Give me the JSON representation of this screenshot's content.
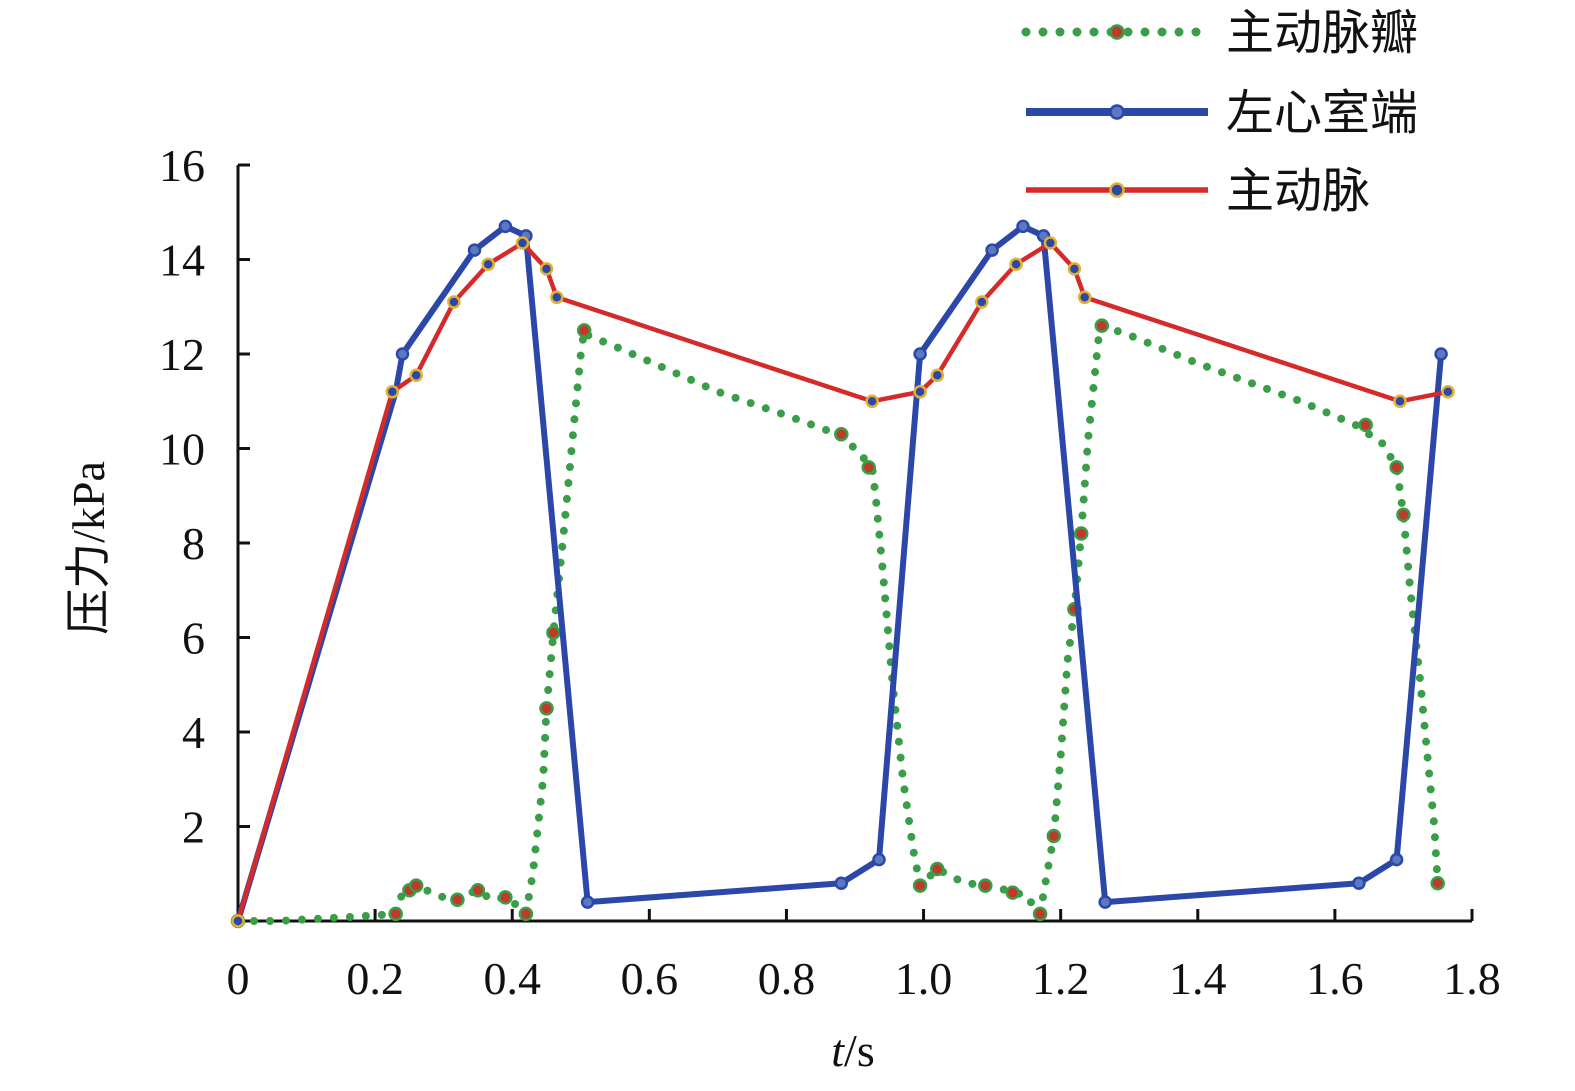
{
  "chart_data": {
    "type": "line",
    "xlabel_italic": "t",
    "xlabel_unit": "/s",
    "ylabel": "压力/kPa",
    "xlim": [
      0,
      1.8
    ],
    "ylim": [
      0,
      16
    ],
    "x_ticks": [
      "0",
      "0.2",
      "0.4",
      "0.6",
      "0.8",
      "1.0",
      "1.2",
      "1.4",
      "1.6",
      "1.8"
    ],
    "x_tick_values": [
      0,
      0.2,
      0.4,
      0.6,
      0.8,
      1.0,
      1.2,
      1.4,
      1.6,
      1.8
    ],
    "y_ticks": [
      "2",
      "4",
      "6",
      "8",
      "10",
      "12",
      "14",
      "16"
    ],
    "y_tick_values": [
      2,
      4,
      6,
      8,
      10,
      12,
      14,
      16
    ],
    "grid": false,
    "legend_position": "top-right",
    "series": [
      {
        "name": "主动脉瓣",
        "color": "#3a9d48",
        "marker_color": "#c0392b",
        "style": "dotted",
        "points": [
          [
            0,
            0
          ],
          [
            0.06,
            0
          ],
          [
            0.12,
            0.05
          ],
          [
            0.18,
            0.1
          ],
          [
            0.23,
            0.15
          ],
          [
            0.24,
            0.6
          ],
          [
            0.26,
            0.75
          ],
          [
            0.29,
            0.55
          ],
          [
            0.31,
            0.45
          ],
          [
            0.35,
            0.65
          ],
          [
            0.37,
            0.45
          ],
          [
            0.39,
            0.5
          ],
          [
            0.41,
            0.3
          ],
          [
            0.42,
            0.15
          ],
          [
            0.43,
            1.0
          ],
          [
            0.445,
            3.0
          ],
          [
            0.45,
            4.5
          ],
          [
            0.46,
            6.1
          ],
          [
            0.475,
            8.2
          ],
          [
            0.49,
            10.5
          ],
          [
            0.5,
            12.0
          ],
          [
            0.505,
            12.5
          ],
          [
            0.51,
            12.4
          ],
          [
            0.56,
            12.1
          ],
          [
            0.7,
            11.2
          ],
          [
            0.8,
            10.7
          ],
          [
            0.875,
            10.3
          ],
          [
            0.9,
            10.0
          ],
          [
            0.925,
            9.6
          ],
          [
            0.93,
            9.0
          ],
          [
            0.94,
            7.5
          ],
          [
            0.955,
            5.0
          ],
          [
            0.97,
            3.0
          ],
          [
            0.985,
            1.5
          ],
          [
            0.995,
            0.75
          ],
          [
            1.02,
            1.1
          ],
          [
            1.06,
            0.8
          ],
          [
            1.1,
            0.75
          ],
          [
            1.13,
            0.6
          ],
          [
            1.15,
            0.55
          ],
          [
            1.165,
            0.2
          ],
          [
            1.17,
            0.15
          ],
          [
            1.18,
            1.0
          ],
          [
            1.19,
            1.8
          ],
          [
            1.2,
            3.5
          ],
          [
            1.21,
            5.5
          ],
          [
            1.22,
            6.6
          ],
          [
            1.23,
            8.2
          ],
          [
            1.24,
            10.2
          ],
          [
            1.255,
            12.3
          ],
          [
            1.26,
            12.6
          ],
          [
            1.3,
            12.4
          ],
          [
            1.4,
            11.8
          ],
          [
            1.55,
            11.0
          ],
          [
            1.63,
            10.5
          ],
          [
            1.67,
            10.1
          ],
          [
            1.69,
            9.6
          ],
          [
            1.7,
            8.6
          ],
          [
            1.71,
            7.0
          ],
          [
            1.725,
            5.0
          ],
          [
            1.735,
            3.5
          ],
          [
            1.745,
            2.0
          ],
          [
            1.75,
            0.8
          ]
        ],
        "markers": [
          [
            0,
            0
          ],
          [
            0.23,
            0.15
          ],
          [
            0.25,
            0.65
          ],
          [
            0.26,
            0.75
          ],
          [
            0.32,
            0.45
          ],
          [
            0.35,
            0.65
          ],
          [
            0.39,
            0.5
          ],
          [
            0.42,
            0.15
          ],
          [
            0.45,
            4.5
          ],
          [
            0.46,
            6.1
          ],
          [
            0.505,
            12.5
          ],
          [
            0.88,
            10.3
          ],
          [
            0.92,
            9.6
          ],
          [
            0.995,
            0.75
          ],
          [
            1.02,
            1.1
          ],
          [
            1.09,
            0.75
          ],
          [
            1.13,
            0.6
          ],
          [
            1.17,
            0.15
          ],
          [
            1.19,
            1.8
          ],
          [
            1.22,
            6.6
          ],
          [
            1.23,
            8.2
          ],
          [
            1.26,
            12.6
          ],
          [
            1.645,
            10.5
          ],
          [
            1.69,
            9.6
          ],
          [
            1.7,
            8.6
          ],
          [
            1.75,
            0.8
          ]
        ]
      },
      {
        "name": "左心室端",
        "color": "#2b48a8",
        "marker_color": "#5d78c2",
        "style": "solid",
        "points": [
          [
            0,
            0
          ],
          [
            0.23,
            11.2
          ],
          [
            0.24,
            12.0
          ],
          [
            0.345,
            14.2
          ],
          [
            0.39,
            14.7
          ],
          [
            0.42,
            14.5
          ],
          [
            0.51,
            0.4
          ],
          [
            0.88,
            0.8
          ],
          [
            0.935,
            1.3
          ],
          [
            0.995,
            12.0
          ],
          [
            1.1,
            14.2
          ],
          [
            1.145,
            14.7
          ],
          [
            1.175,
            14.5
          ],
          [
            1.265,
            0.4
          ],
          [
            1.635,
            0.8
          ],
          [
            1.69,
            1.3
          ],
          [
            1.755,
            12.0
          ]
        ],
        "markers": [
          [
            0,
            0
          ],
          [
            0.24,
            12.0
          ],
          [
            0.345,
            14.2
          ],
          [
            0.39,
            14.7
          ],
          [
            0.42,
            14.5
          ],
          [
            0.51,
            0.4
          ],
          [
            0.88,
            0.8
          ],
          [
            0.935,
            1.3
          ],
          [
            0.995,
            12.0
          ],
          [
            1.1,
            14.2
          ],
          [
            1.145,
            14.7
          ],
          [
            1.175,
            14.5
          ],
          [
            1.265,
            0.4
          ],
          [
            1.635,
            0.8
          ],
          [
            1.69,
            1.3
          ],
          [
            1.755,
            12.0
          ]
        ]
      },
      {
        "name": "主动脉",
        "color": "#d42a2a",
        "marker_color": "#e0b030",
        "style": "solid",
        "points": [
          [
            0,
            0
          ],
          [
            0.225,
            11.2
          ],
          [
            0.26,
            11.55
          ],
          [
            0.315,
            13.1
          ],
          [
            0.365,
            13.9
          ],
          [
            0.415,
            14.35
          ],
          [
            0.45,
            13.8
          ],
          [
            0.465,
            13.2
          ],
          [
            0.925,
            11.0
          ],
          [
            0.995,
            11.2
          ],
          [
            1.02,
            11.55
          ],
          [
            1.085,
            13.1
          ],
          [
            1.135,
            13.9
          ],
          [
            1.185,
            14.35
          ],
          [
            1.22,
            13.8
          ],
          [
            1.235,
            13.2
          ],
          [
            1.695,
            11.0
          ],
          [
            1.765,
            11.2
          ]
        ],
        "markers": [
          [
            0,
            0
          ],
          [
            0.225,
            11.2
          ],
          [
            0.26,
            11.55
          ],
          [
            0.315,
            13.1
          ],
          [
            0.365,
            13.9
          ],
          [
            0.415,
            14.35
          ],
          [
            0.45,
            13.8
          ],
          [
            0.465,
            13.2
          ],
          [
            0.925,
            11.0
          ],
          [
            0.995,
            11.2
          ],
          [
            1.02,
            11.55
          ],
          [
            1.085,
            13.1
          ],
          [
            1.135,
            13.9
          ],
          [
            1.185,
            14.35
          ],
          [
            1.22,
            13.8
          ],
          [
            1.235,
            13.2
          ],
          [
            1.695,
            11.0
          ],
          [
            1.765,
            11.2
          ]
        ]
      }
    ]
  }
}
